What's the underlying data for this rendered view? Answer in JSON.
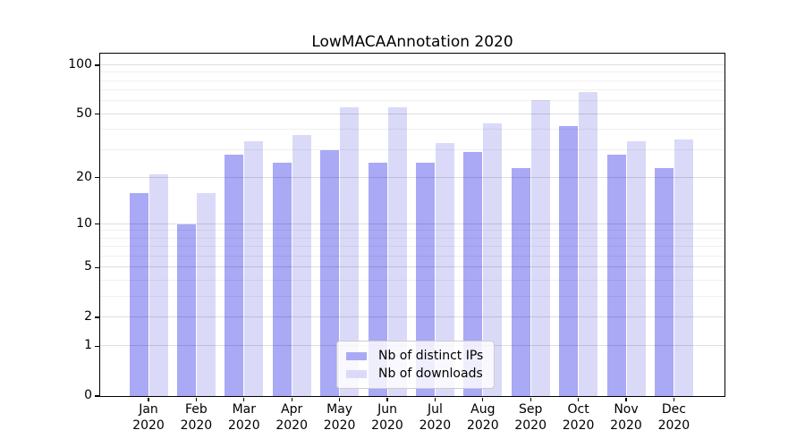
{
  "title": "LowMACAAnnotation 2020",
  "chart_data": {
    "type": "bar",
    "title": "LowMACAAnnotation 2020",
    "categories": [
      "Jan",
      "Feb",
      "Mar",
      "Apr",
      "May",
      "Jun",
      "Jul",
      "Aug",
      "Sep",
      "Oct",
      "Nov",
      "Dec"
    ],
    "category_year": "2020",
    "series": [
      {
        "name": "Nb of distinct IPs",
        "color": "#a9a9f5",
        "values": [
          16,
          10,
          28,
          25,
          30,
          25,
          25,
          29,
          23,
          42,
          28,
          23
        ]
      },
      {
        "name": "Nb of downloads",
        "color": "#dadaf8",
        "values": [
          21,
          16,
          34,
          37,
          55,
          55,
          33,
          44,
          61,
          68,
          34,
          35
        ]
      }
    ],
    "xlabel": "",
    "ylabel": "",
    "y_scale": "log1p",
    "ylim": [
      0,
      116
    ],
    "y_ticks": [
      0,
      1,
      2,
      5,
      10,
      20,
      50,
      100
    ],
    "y_minor_gridlines": [
      3,
      4,
      6,
      7,
      8,
      9,
      30,
      40,
      60,
      70,
      80,
      90
    ],
    "grid": "both",
    "grid_above_bars": true,
    "legend_position": "lower center"
  },
  "colors": {
    "background": "#ffffff",
    "bar_distinct_ips": "#a9a9f5",
    "bar_downloads": "#dadaf8",
    "spine": "#000000",
    "grid_major": "rgba(0,0,0,0.13)",
    "grid_minor": "rgba(0,0,0,0.06)",
    "text": "#000000",
    "legend_border": "#cccccc",
    "legend_background": "rgba(255,255,255,0.8)"
  }
}
